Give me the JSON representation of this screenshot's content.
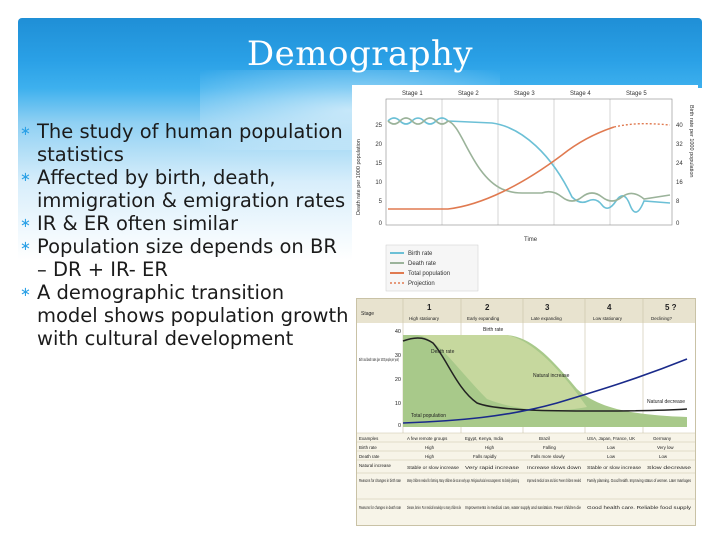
{
  "slide": {
    "title": "Demography",
    "bullets": [
      "The study of human population statistics",
      "Affected by birth, death, immigration & emigration rates",
      "IR & ER often similar",
      "Population size depends on BR – DR + IR- ER",
      "A demographic transition model shows population growth with cultural development"
    ]
  },
  "figure_top": {
    "stages": [
      "Stage 1",
      "Stage 2",
      "Stage 3",
      "Stage 4",
      "Stage 5"
    ],
    "left_ticks": [
      "25",
      "20",
      "15",
      "10",
      "5",
      "0"
    ],
    "right_ticks": [
      "40",
      "32",
      "24",
      "16",
      "8",
      "0"
    ],
    "left_axis_label": "Death rate per 1000 population",
    "right_axis_label": "Birth rate per 1000 population",
    "x_label": "Time",
    "legend": [
      "Birth rate",
      "Death rate",
      "Total population",
      "Projection"
    ],
    "colors": {
      "birth": "#6cc0d6",
      "death": "#9bb39a",
      "total": "#e07a50",
      "projection": "#e07a50"
    }
  },
  "figure_bottom": {
    "stage_label": "Stage",
    "stage_numbers": [
      "1",
      "2",
      "3",
      "4",
      "5 ?"
    ],
    "stage_names": [
      "High stationary",
      "Early expanding",
      "Late expanding",
      "Low stationary",
      "Declining?"
    ],
    "y_ticks": [
      "40",
      "30",
      "20",
      "10",
      "0"
    ],
    "y_label": "Birth and death rates (per 1000 people per year)",
    "curve_labels": {
      "birth": "Birth rate",
      "death": "Death rate",
      "natural_increase": "Natural increase",
      "total": "Total population",
      "natural_decrease": "Natural decrease"
    },
    "table_rows": [
      {
        "head": "Examples",
        "cells": [
          "A few remote groups",
          "Egypt, Kenya, India",
          "Brazil",
          "USA, Japan, France, UK",
          "Germany"
        ]
      },
      {
        "head": "Birth rate",
        "cells": [
          "High",
          "High",
          "Falling",
          "Low",
          "Very low"
        ]
      },
      {
        "head": "Death rate",
        "cells": [
          "High",
          "Falls rapidly",
          "Falls more slowly",
          "Low",
          "Low"
        ]
      },
      {
        "head": "Natural increase",
        "cells": [
          "Stable or slow increase",
          "Very rapid increase",
          "Increase slows down",
          "Stable or slow increase",
          "Slow decrease"
        ]
      },
      {
        "head": "Reasons for changes in birth rate",
        "cells": [
          "Many children needed for farming. Many children die at an early age. Religious/social encouragement. No family planning",
          "",
          "Improved medical care and diet. Fewer children needed",
          "Family planning. Good health. Improving status of women. Later marriages",
          ""
        ]
      },
      {
        "head": "Reasons for changes in death rate",
        "cells": [
          "Disease, famine. Poor medical knowledge so many children die",
          "",
          "Improvements in medical care, water supply and sanitation. Fewer children die",
          "Good health care. Reliable food supply",
          ""
        ]
      }
    ],
    "colors": {
      "birth_fill": "#a8c98a",
      "increase_fill": "#c9d9a0",
      "death_line": "#222222",
      "total_line": "#1a2a8a",
      "header_bg": "#e8e3cf"
    }
  }
}
